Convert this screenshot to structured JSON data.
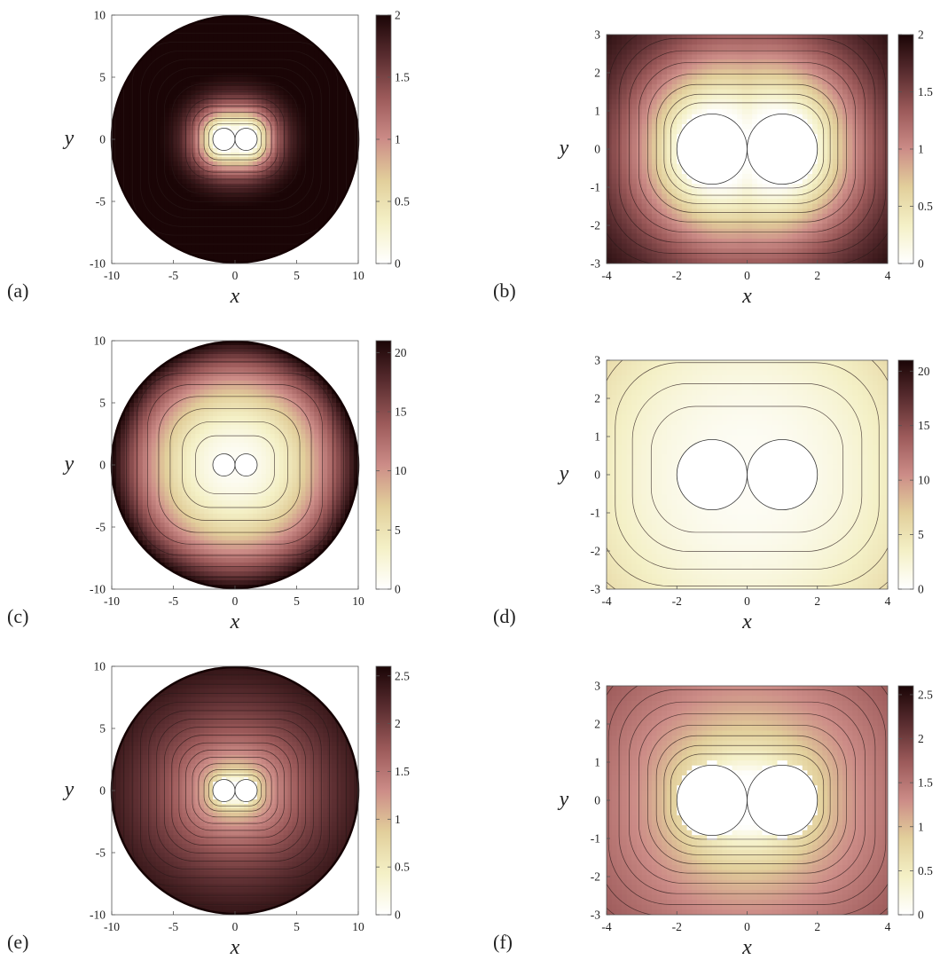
{
  "figure": {
    "panels": [
      "(a)",
      "(b)",
      "(c)",
      "(d)",
      "(e)",
      "(f)"
    ]
  },
  "chart_data": [
    {
      "panel": "(a)",
      "type": "heatmap",
      "domain": "disk",
      "radius": 10,
      "xlabel": "x",
      "ylabel": "y",
      "xlim": [
        -10,
        10
      ],
      "ylim": [
        -10,
        10
      ],
      "xticks": [
        "-10",
        "-5",
        "0",
        "5",
        "10"
      ],
      "yticks": [
        "-10",
        "-5",
        "0",
        "5",
        "10"
      ],
      "clim": [
        0,
        2
      ],
      "cticks": [
        "0",
        "0.5",
        "1",
        "1.5",
        "2"
      ],
      "holes": [
        {
          "cx": -0.9,
          "cy": 0,
          "r": 0.9
        },
        {
          "cx": 0.9,
          "cy": 0,
          "r": 0.9
        }
      ],
      "field": "anisotropic",
      "grid": false
    },
    {
      "panel": "(b)",
      "type": "heatmap",
      "domain": "rect",
      "xlabel": "x",
      "ylabel": "y",
      "xlim": [
        -4,
        4
      ],
      "ylim": [
        -3,
        3
      ],
      "xticks": [
        "-4",
        "-2",
        "0",
        "2",
        "4"
      ],
      "yticks": [
        "-3",
        "-2",
        "-1",
        "0",
        "1",
        "2",
        "3"
      ],
      "clim": [
        0,
        2
      ],
      "cticks": [
        "0",
        "0.5",
        "1",
        "1.5",
        "2"
      ],
      "holes": [
        {
          "cx": -1,
          "cy": 0,
          "r": 1
        },
        {
          "cx": 1,
          "cy": 0,
          "r": 1
        }
      ],
      "field": "anisotropic",
      "grid": false
    },
    {
      "panel": "(c)",
      "type": "heatmap",
      "domain": "disk",
      "radius": 10,
      "xlabel": "x",
      "ylabel": "y",
      "xlim": [
        -10,
        10
      ],
      "ylim": [
        -10,
        10
      ],
      "xticks": [
        "-10",
        "-5",
        "0",
        "5",
        "10"
      ],
      "yticks": [
        "-10",
        "-5",
        "0",
        "5",
        "10"
      ],
      "clim": [
        0,
        21
      ],
      "cticks": [
        "0",
        "5",
        "10",
        "15",
        "20"
      ],
      "holes": [
        {
          "cx": -0.9,
          "cy": 0,
          "r": 0.9
        },
        {
          "cx": 0.9,
          "cy": 0,
          "r": 0.9
        }
      ],
      "field": "quadratic",
      "grid": false
    },
    {
      "panel": "(d)",
      "type": "heatmap",
      "domain": "rect",
      "xlabel": "x",
      "ylabel": "y",
      "xlim": [
        -4,
        4
      ],
      "ylim": [
        -3,
        3
      ],
      "xticks": [
        "-4",
        "-2",
        "0",
        "2",
        "4"
      ],
      "yticks": [
        "-3",
        "-2",
        "-1",
        "0",
        "1",
        "2",
        "3"
      ],
      "clim": [
        0,
        21
      ],
      "cticks": [
        "0",
        "5",
        "10",
        "15",
        "20"
      ],
      "holes": [
        {
          "cx": -1,
          "cy": 0,
          "r": 1
        },
        {
          "cx": 1,
          "cy": 0,
          "r": 1
        }
      ],
      "field": "quadratic",
      "grid": false
    },
    {
      "panel": "(e)",
      "type": "heatmap",
      "domain": "disk",
      "radius": 10,
      "xlabel": "x",
      "ylabel": "y",
      "xlim": [
        -10,
        10
      ],
      "ylim": [
        -10,
        10
      ],
      "xticks": [
        "-10",
        "-5",
        "0",
        "5",
        "10"
      ],
      "yticks": [
        "-10",
        "-5",
        "0",
        "5",
        "10"
      ],
      "clim": [
        0,
        2.6
      ],
      "cticks": [
        "0",
        "0.5",
        "1",
        "1.5",
        "2",
        "2.5"
      ],
      "holes": [
        {
          "cx": -0.9,
          "cy": 0,
          "r": 0.9
        },
        {
          "cx": 0.9,
          "cy": 0,
          "r": 0.9
        }
      ],
      "field": "log",
      "grid": false
    },
    {
      "panel": "(f)",
      "type": "heatmap",
      "domain": "rect",
      "xlabel": "x",
      "ylabel": "y",
      "xlim": [
        -4,
        4
      ],
      "ylim": [
        -3,
        3
      ],
      "xticks": [
        "-4",
        "-2",
        "0",
        "2",
        "4"
      ],
      "yticks": [
        "-3",
        "-2",
        "-1",
        "0",
        "1",
        "2",
        "3"
      ],
      "clim": [
        0,
        2.6
      ],
      "cticks": [
        "0",
        "0.5",
        "1",
        "1.5",
        "2",
        "2.5"
      ],
      "holes": [
        {
          "cx": -1,
          "cy": 0,
          "r": 1
        },
        {
          "cx": 1,
          "cy": 0,
          "r": 1
        }
      ],
      "field": "log",
      "grid": false
    }
  ],
  "colormap": [
    "#ffffff",
    "#f4f0c6",
    "#e2cf9b",
    "#cc8c87",
    "#9c5a5a",
    "#5a2d30",
    "#1a0506"
  ]
}
